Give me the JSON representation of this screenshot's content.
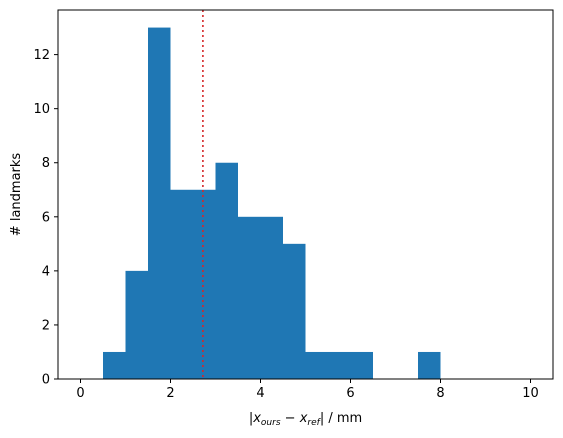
{
  "chart_data": {
    "type": "bar",
    "bin_edges": [
      0,
      0.5,
      1,
      1.5,
      2,
      2.5,
      3,
      3.5,
      4,
      4.5,
      5,
      5.5,
      6,
      6.5,
      7,
      7.5,
      8,
      8.5,
      9,
      9.5,
      10
    ],
    "values": [
      0,
      1,
      4,
      13,
      7,
      7,
      8,
      6,
      6,
      5,
      1,
      1,
      1,
      0,
      0,
      1,
      0,
      0,
      0,
      0
    ],
    "reference_line": {
      "x": 2.72,
      "style": "dotted",
      "color": "#d62728"
    },
    "bar_color": "#1f77b4",
    "xlim": [
      -0.5,
      10.5
    ],
    "ylim": [
      0,
      13.65
    ],
    "xticks": [
      0,
      2,
      4,
      6,
      8,
      10
    ],
    "yticks": [
      0,
      2,
      4,
      6,
      8,
      10,
      12
    ],
    "xlabel": {
      "prefix": "|",
      "x1": "x",
      "x1_sub": "ours",
      "minus": " − ",
      "x2": "x",
      "x2_sub": "ref",
      "suffix": "| / mm"
    },
    "ylabel": "# landmarks",
    "grid": false,
    "legend": "none"
  }
}
